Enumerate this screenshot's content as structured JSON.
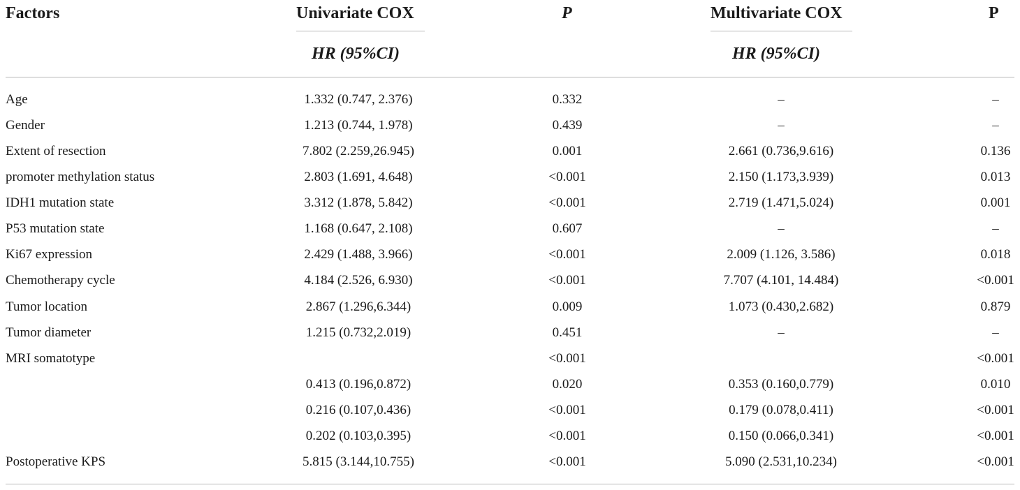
{
  "table": {
    "headers": {
      "factors": "Factors",
      "univariate": "Univariate COX",
      "univariate_p": "P",
      "multivariate": "Multivariate COX",
      "multivariate_p": "P",
      "univariate_sub": "HR (95%CI)",
      "multivariate_sub": "HR (95%CI)"
    },
    "rows": [
      {
        "factor": "Age",
        "uni_hr": "1.332 (0.747, 2.376)",
        "uni_p": "0.332",
        "multi_hr": "–",
        "multi_p": "–"
      },
      {
        "factor": "Gender",
        "uni_hr": "1.213 (0.744, 1.978)",
        "uni_p": "0.439",
        "multi_hr": "–",
        "multi_p": "–"
      },
      {
        "factor": "Extent of resection",
        "uni_hr": "7.802 (2.259,26.945)",
        "uni_p": "0.001",
        "multi_hr": "2.661 (0.736,9.616)",
        "multi_p": "0.136"
      },
      {
        "factor": "promoter methylation status",
        "uni_hr": "2.803 (1.691, 4.648)",
        "uni_p": "<0.001",
        "multi_hr": "2.150 (1.173,3.939)",
        "multi_p": "0.013"
      },
      {
        "factor": "IDH1 mutation state",
        "uni_hr": "3.312 (1.878, 5.842)",
        "uni_p": "<0.001",
        "multi_hr": "2.719 (1.471,5.024)",
        "multi_p": "0.001"
      },
      {
        "factor": "P53 mutation state",
        "uni_hr": "1.168 (0.647, 2.108)",
        "uni_p": "0.607",
        "multi_hr": "–",
        "multi_p": "–"
      },
      {
        "factor": "Ki67 expression",
        "uni_hr": "2.429 (1.488, 3.966)",
        "uni_p": "<0.001",
        "multi_hr": "2.009 (1.126, 3.586)",
        "multi_p": "0.018"
      },
      {
        "factor": "Chemotherapy cycle",
        "uni_hr": "4.184 (2.526, 6.930)",
        "uni_p": "<0.001",
        "multi_hr": "7.707 (4.101, 14.484)",
        "multi_p": "<0.001"
      },
      {
        "factor": "Tumor location",
        "uni_hr": "2.867 (1.296,6.344)",
        "uni_p": "0.009",
        "multi_hr": "1.073 (0.430,2.682)",
        "multi_p": "0.879"
      },
      {
        "factor": "Tumor diameter",
        "uni_hr": "1.215 (0.732,2.019)",
        "uni_p": "0.451",
        "multi_hr": "–",
        "multi_p": "–"
      },
      {
        "factor": "MRI somatotype",
        "uni_hr": "",
        "uni_p": "<0.001",
        "multi_hr": "",
        "multi_p": "<0.001"
      },
      {
        "factor": "",
        "uni_hr": "0.413 (0.196,0.872)",
        "uni_p": "0.020",
        "multi_hr": "0.353 (0.160,0.779)",
        "multi_p": "0.010"
      },
      {
        "factor": "",
        "uni_hr": "0.216 (0.107,0.436)",
        "uni_p": "<0.001",
        "multi_hr": "0.179 (0.078,0.411)",
        "multi_p": "<0.001"
      },
      {
        "factor": "",
        "uni_hr": "0.202 (0.103,0.395)",
        "uni_p": "<0.001",
        "multi_hr": "0.150 (0.066,0.341)",
        "multi_p": "<0.001"
      },
      {
        "factor": "Postoperative KPS",
        "uni_hr": "5.815 (3.144,10.755)",
        "uni_p": "<0.001",
        "multi_hr": "5.090 (2.531,10.234)",
        "multi_p": "<0.001"
      }
    ]
  }
}
